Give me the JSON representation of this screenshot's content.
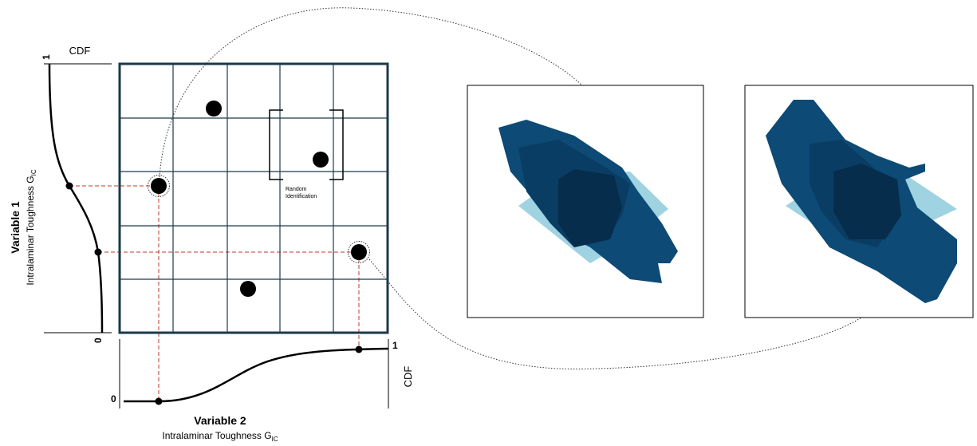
{
  "left_cdf": {
    "title": "CDF",
    "max": "1",
    "min": "0"
  },
  "left_axis": {
    "label": "Variable 1",
    "sublabel": "Intralaminar Toughness G",
    "subscript": "IC"
  },
  "grid": {
    "annotation": [
      "Random",
      "Identification"
    ]
  },
  "bottom_cdf": {
    "title": "CDF",
    "max": "1",
    "min": "0"
  },
  "bottom_axis": {
    "label": "Variable 2",
    "sublabel": "Intralaminar Toughness G",
    "subscript": "IC"
  }
}
